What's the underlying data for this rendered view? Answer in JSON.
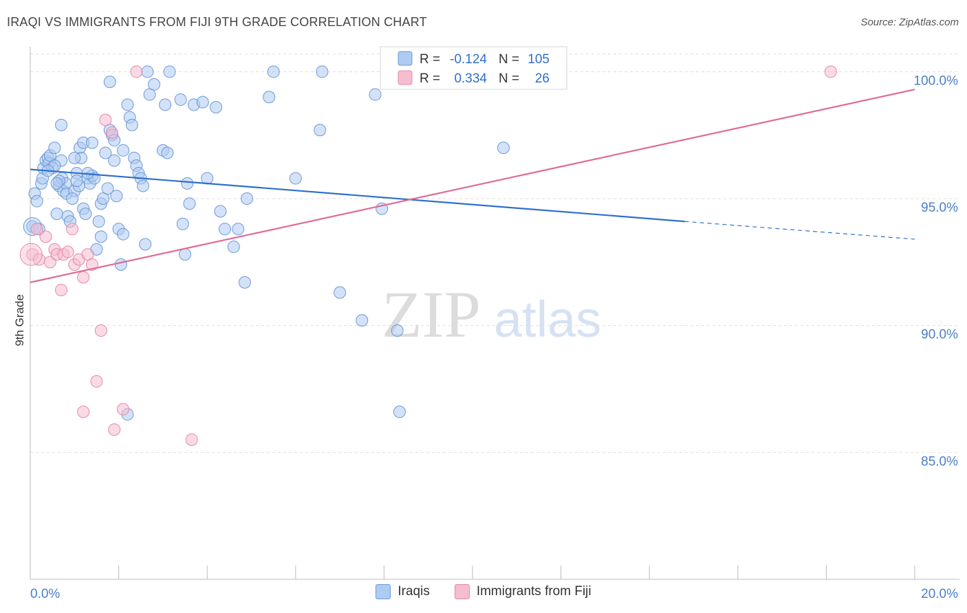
{
  "title": "IRAQI VS IMMIGRANTS FROM FIJI 9TH GRADE CORRELATION CHART",
  "source": "Source: ZipAtlas.com",
  "watermark": {
    "zip": "ZIP",
    "atlas": "atlas"
  },
  "colors": {
    "blue_fill": "#aecbf2",
    "blue_stroke": "#6c9ad6",
    "blue_line": "#2f6fcc",
    "pink_fill": "#f6bcd0",
    "pink_stroke": "#e38aab",
    "pink_line": "#e06a93",
    "axis_label": "#4a7fc9",
    "grid": "#dddddd"
  },
  "legend": {
    "rows": [
      {
        "r_label": "R =",
        "r_value": "-0.124",
        "n_label": "N =",
        "n_value": "105"
      },
      {
        "r_label": "R =",
        "r_value": "0.334",
        "n_label": "N =",
        "n_value": "26"
      }
    ]
  },
  "chart_data": {
    "type": "scatter",
    "title": "IRAQI VS IMMIGRANTS FROM FIJI 9TH GRADE CORRELATION CHART",
    "xlabel": "",
    "ylabel": "9th Grade",
    "xlim": [
      0,
      20
    ],
    "ylim": [
      80,
      101.2
    ],
    "x_ticks": [
      {
        "value": 0,
        "label": "0.0%"
      },
      {
        "value": 20,
        "label": "20.0%"
      }
    ],
    "y_ticks": [
      {
        "value": 85,
        "label": "85.0%"
      },
      {
        "value": 90,
        "label": "90.0%"
      },
      {
        "value": 95,
        "label": "95.0%"
      },
      {
        "value": 100,
        "label": "100.0%"
      }
    ],
    "series": [
      {
        "name": "Iraqis",
        "r": -0.124,
        "n": 105,
        "trend": {
          "x0": 0,
          "y0": 96.15,
          "x1": 14.8,
          "y1": 94.1,
          "dash_x1": 20,
          "dash_y1": 93.4
        },
        "points": [
          [
            0.05,
            93.9
          ],
          [
            0.1,
            95.2
          ],
          [
            0.15,
            94.9
          ],
          [
            0.2,
            93.8
          ],
          [
            0.25,
            95.6
          ],
          [
            0.28,
            95.8
          ],
          [
            0.3,
            96.2
          ],
          [
            0.35,
            96.5
          ],
          [
            0.4,
            96.6
          ],
          [
            0.42,
            96.4
          ],
          [
            0.45,
            96.7
          ],
          [
            0.5,
            96.2
          ],
          [
            0.55,
            97.0
          ],
          [
            0.6,
            94.4
          ],
          [
            0.65,
            95.5
          ],
          [
            0.7,
            96.5
          ],
          [
            0.72,
            95.8
          ],
          [
            0.75,
            95.3
          ],
          [
            0.8,
            95.6
          ],
          [
            0.82,
            95.2
          ],
          [
            0.85,
            94.3
          ],
          [
            0.9,
            94.1
          ],
          [
            1.0,
            95.3
          ],
          [
            1.05,
            96.0
          ],
          [
            1.1,
            95.5
          ],
          [
            1.12,
            97.0
          ],
          [
            1.15,
            96.6
          ],
          [
            1.2,
            94.6
          ],
          [
            1.25,
            94.4
          ],
          [
            1.3,
            95.8
          ],
          [
            1.35,
            95.6
          ],
          [
            1.4,
            95.9
          ],
          [
            1.45,
            95.8
          ],
          [
            1.5,
            93.0
          ],
          [
            1.55,
            94.1
          ],
          [
            1.6,
            94.8
          ],
          [
            1.65,
            95.0
          ],
          [
            1.7,
            96.8
          ],
          [
            1.75,
            95.4
          ],
          [
            1.8,
            97.7
          ],
          [
            1.85,
            97.5
          ],
          [
            1.9,
            96.5
          ],
          [
            1.95,
            95.1
          ],
          [
            2.0,
            93.8
          ],
          [
            2.05,
            92.4
          ],
          [
            2.1,
            93.6
          ],
          [
            2.2,
            98.7
          ],
          [
            2.25,
            98.2
          ],
          [
            2.3,
            97.9
          ],
          [
            2.35,
            96.6
          ],
          [
            2.4,
            96.3
          ],
          [
            2.45,
            96.0
          ],
          [
            2.5,
            95.8
          ],
          [
            2.55,
            95.5
          ],
          [
            2.6,
            93.2
          ],
          [
            2.65,
            100.0
          ],
          [
            2.7,
            99.1
          ],
          [
            3.0,
            96.9
          ],
          [
            3.05,
            98.7
          ],
          [
            3.1,
            96.8
          ],
          [
            3.15,
            100.0
          ],
          [
            3.4,
            98.9
          ],
          [
            3.45,
            94.0
          ],
          [
            3.5,
            92.8
          ],
          [
            3.55,
            95.6
          ],
          [
            3.6,
            94.8
          ],
          [
            3.7,
            98.7
          ],
          [
            3.9,
            98.8
          ],
          [
            4.0,
            95.8
          ],
          [
            4.2,
            98.6
          ],
          [
            4.3,
            94.5
          ],
          [
            4.4,
            93.8
          ],
          [
            4.6,
            93.1
          ],
          [
            4.7,
            93.8
          ],
          [
            4.85,
            91.7
          ],
          [
            4.9,
            95.0
          ],
          [
            5.4,
            99.0
          ],
          [
            5.5,
            100.0
          ],
          [
            6.0,
            95.8
          ],
          [
            6.55,
            97.7
          ],
          [
            6.6,
            100.0
          ],
          [
            7.0,
            91.3
          ],
          [
            7.5,
            90.2
          ],
          [
            7.8,
            99.1
          ],
          [
            7.95,
            94.6
          ],
          [
            8.3,
            89.8
          ],
          [
            8.35,
            86.6
          ],
          [
            10.7,
            97.0
          ],
          [
            1.8,
            99.6
          ],
          [
            0.7,
            97.9
          ],
          [
            1.9,
            97.3
          ],
          [
            1.2,
            97.2
          ],
          [
            0.65,
            95.7
          ],
          [
            1.0,
            96.6
          ],
          [
            1.4,
            97.2
          ],
          [
            0.6,
            95.6
          ],
          [
            2.1,
            96.9
          ],
          [
            1.6,
            93.5
          ],
          [
            2.2,
            86.5
          ],
          [
            2.8,
            99.5
          ],
          [
            1.3,
            96.0
          ],
          [
            0.95,
            95.0
          ],
          [
            1.05,
            95.7
          ],
          [
            0.55,
            96.3
          ],
          [
            0.4,
            96.1
          ]
        ]
      },
      {
        "name": "Immigrants from Fiji",
        "r": 0.334,
        "n": 26,
        "trend": {
          "x0": 0,
          "y0": 91.7,
          "x1": 20,
          "y1": 99.3
        },
        "points": [
          [
            0.05,
            92.8
          ],
          [
            0.15,
            93.8
          ],
          [
            0.2,
            92.6
          ],
          [
            0.35,
            93.5
          ],
          [
            0.45,
            92.5
          ],
          [
            0.55,
            93.0
          ],
          [
            0.6,
            92.8
          ],
          [
            0.7,
            91.4
          ],
          [
            0.75,
            92.8
          ],
          [
            0.85,
            92.9
          ],
          [
            0.95,
            93.8
          ],
          [
            1.0,
            92.4
          ],
          [
            1.1,
            92.6
          ],
          [
            1.2,
            91.9
          ],
          [
            1.3,
            92.8
          ],
          [
            1.4,
            92.4
          ],
          [
            1.5,
            87.8
          ],
          [
            1.6,
            89.8
          ],
          [
            1.7,
            98.1
          ],
          [
            1.85,
            97.6
          ],
          [
            1.9,
            85.9
          ],
          [
            2.1,
            86.7
          ],
          [
            2.4,
            100.0
          ],
          [
            3.65,
            85.5
          ],
          [
            18.1,
            100.0
          ],
          [
            1.2,
            86.6
          ]
        ]
      }
    ]
  }
}
